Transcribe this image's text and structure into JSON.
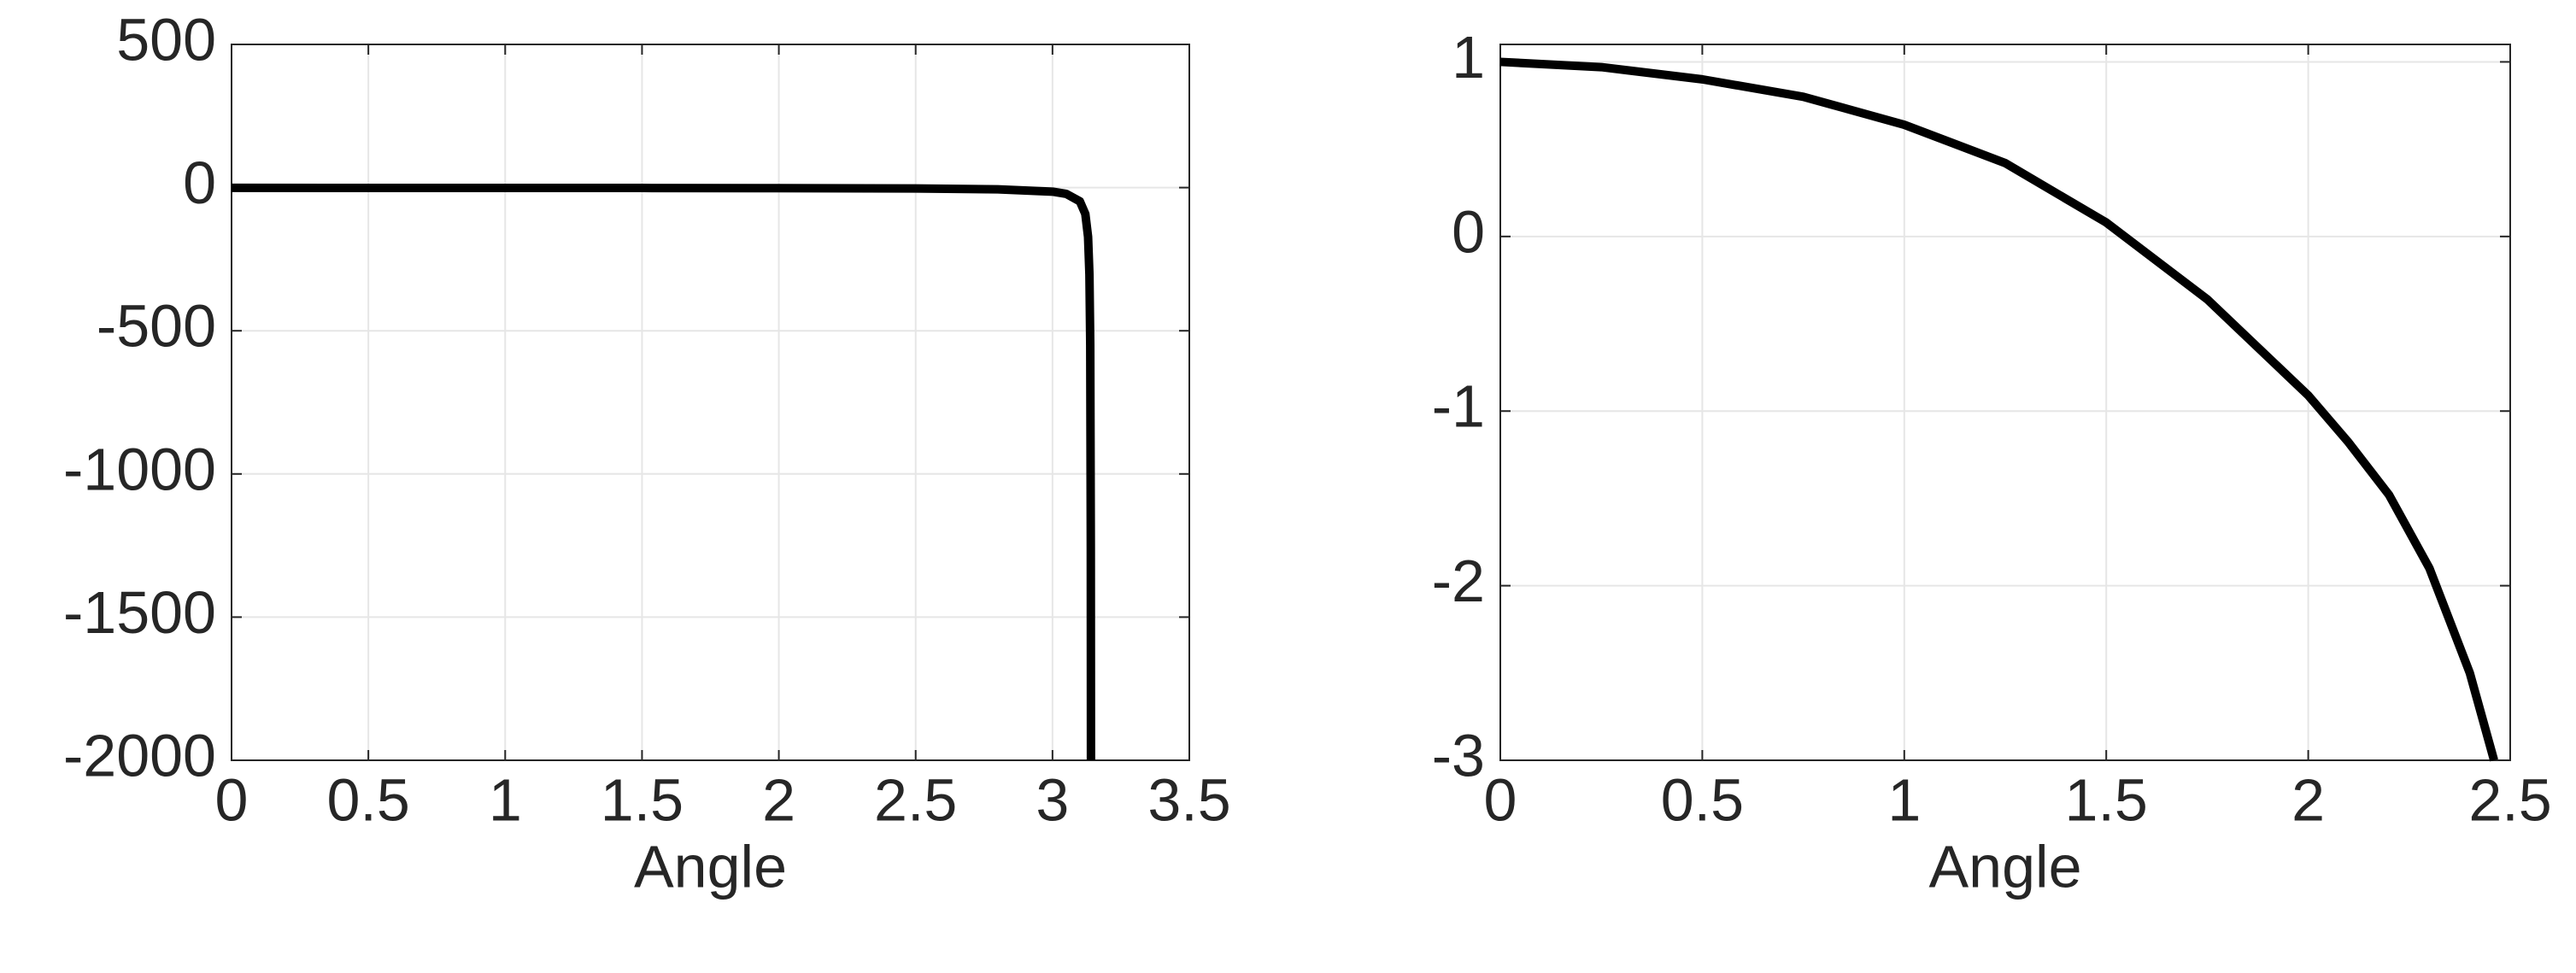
{
  "chart_data": [
    {
      "type": "line",
      "xlabel": "Angle",
      "color": "#000000",
      "grid": true,
      "x": [
        0,
        0.5,
        1,
        1.5,
        2,
        2.5,
        2.8,
        3.0,
        3.05,
        3.1,
        3.12,
        3.13,
        3.135,
        3.138,
        3.14,
        3.1406
      ],
      "values": [
        -1,
        -1.03,
        -1.14,
        -1.37,
        -1.85,
        -3.2,
        -5.9,
        -14.1,
        -21.8,
        -48,
        -92,
        -172,
        -304,
        -550,
        -1256,
        -2000
      ],
      "xlim": [
        0,
        3.5
      ],
      "ylim": [
        -2000,
        500
      ],
      "xticks": [
        0,
        0.5,
        1,
        1.5,
        2,
        2.5,
        3,
        3.5
      ],
      "yticks": [
        500,
        0,
        -500,
        -1000,
        -1500,
        -2000
      ]
    },
    {
      "type": "line",
      "xlabel": "Angle",
      "color": "#000000",
      "grid": true,
      "x": [
        0,
        0.25,
        0.5,
        0.75,
        1,
        1.25,
        1.5,
        1.75,
        2,
        2.1,
        2.2,
        2.3,
        2.4,
        2.46
      ],
      "values": [
        1,
        0.97,
        0.9,
        0.8,
        0.64,
        0.42,
        0.08,
        -0.36,
        -0.91,
        -1.18,
        -1.48,
        -1.9,
        -2.5,
        -3
      ],
      "xlim": [
        0,
        2.5
      ],
      "ylim": [
        -3,
        1.1
      ],
      "xticks": [
        0,
        0.5,
        1,
        1.5,
        2,
        2.5
      ],
      "yticks": [
        1,
        0,
        -1,
        -2,
        -3
      ]
    }
  ]
}
